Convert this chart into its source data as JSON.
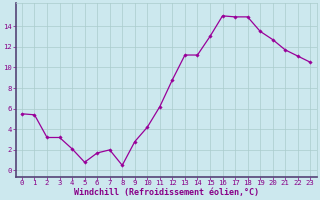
{
  "x": [
    0,
    1,
    2,
    3,
    4,
    5,
    6,
    7,
    8,
    9,
    10,
    11,
    12,
    13,
    14,
    15,
    16,
    17,
    18,
    19,
    20,
    21,
    22,
    23
  ],
  "y": [
    5.5,
    5.4,
    3.2,
    3.2,
    2.1,
    0.8,
    1.7,
    2.0,
    0.5,
    2.8,
    4.2,
    6.2,
    8.8,
    11.2,
    11.2,
    13.0,
    15.0,
    14.9,
    14.9,
    13.5,
    12.7,
    11.7,
    11.1,
    10.5
  ],
  "line_color": "#990099",
  "marker": "D",
  "marker_size": 1.8,
  "bg_color": "#cce8ee",
  "grid_color": "#aacccc",
  "spine_color": "#554477",
  "text_color": "#880088",
  "ylabel_ticks": [
    0,
    2,
    4,
    6,
    8,
    10,
    12,
    14
  ],
  "ylim": [
    -0.6,
    16.2
  ],
  "xlim": [
    -0.5,
    23.5
  ],
  "xlabel": "Windchill (Refroidissement éolien,°C)",
  "tick_fontsize": 5.2,
  "label_fontsize": 6.0,
  "linewidth": 0.9
}
